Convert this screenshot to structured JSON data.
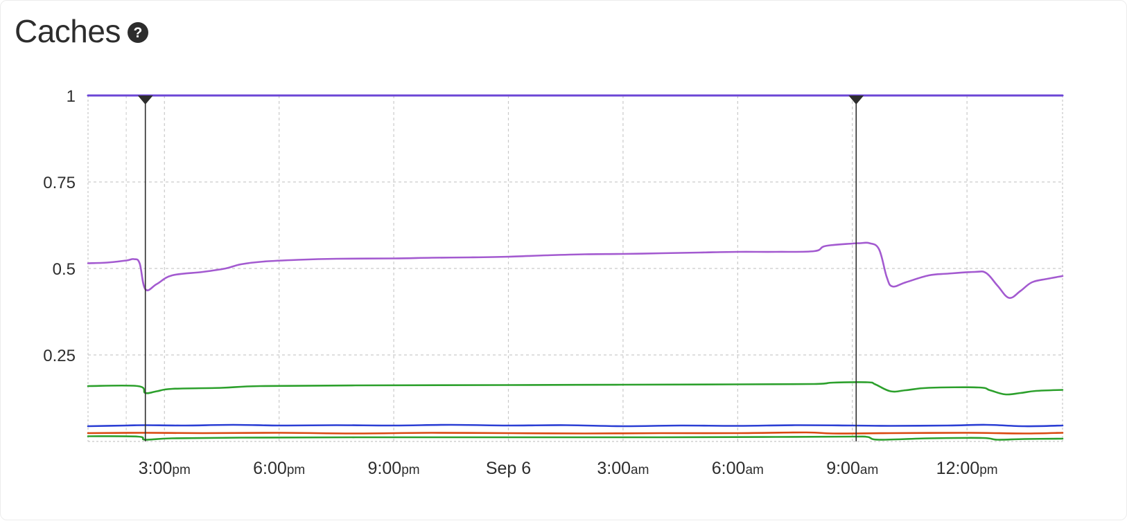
{
  "header": {
    "title": "Caches",
    "help_icon": "question-circle-icon",
    "help_glyph": "?"
  },
  "chart_data": {
    "type": "line",
    "title": "Caches",
    "xlabel": "",
    "ylabel": "",
    "ylim": [
      0,
      1
    ],
    "y_ticks": [
      {
        "value": 1,
        "label": "1"
      },
      {
        "value": 0.75,
        "label": "0.75"
      },
      {
        "value": 0.5,
        "label": "0.5"
      },
      {
        "value": 0.25,
        "label": "0.25"
      }
    ],
    "xlim": [
      "Sep 5 13:00",
      "Sep 6 14:30"
    ],
    "x_ticks": [
      {
        "hour": 15,
        "main": "3:00",
        "suffix": "pm"
      },
      {
        "hour": 18,
        "main": "6:00",
        "suffix": "pm"
      },
      {
        "hour": 21,
        "main": "9:00",
        "suffix": "pm"
      },
      {
        "hour": 24,
        "main": "Sep 6",
        "suffix": ""
      },
      {
        "hour": 27,
        "main": "3:00",
        "suffix": "am"
      },
      {
        "hour": 30,
        "main": "6:00",
        "suffix": "am"
      },
      {
        "hour": 33,
        "main": "9:00",
        "suffix": "am"
      },
      {
        "hour": 36,
        "main": "12:00",
        "suffix": "pm"
      }
    ],
    "grid": true,
    "legend": "none",
    "markers": [
      {
        "hour": 14.5,
        "label": "Sep 5 2:30pm"
      },
      {
        "hour": 33.1,
        "label": "Sep 6 9:06am"
      }
    ],
    "series": [
      {
        "color": "#6b45d6",
        "points": [
          [
            13,
            1.0
          ],
          [
            14.5,
            1.0
          ],
          [
            20,
            1.0
          ],
          [
            26,
            1.0
          ],
          [
            33.1,
            1.0
          ],
          [
            38.5,
            1.0
          ]
        ]
      },
      {
        "color": "#a35ad0",
        "points": [
          [
            13,
            0.515
          ],
          [
            13.5,
            0.517
          ],
          [
            14.0,
            0.523
          ],
          [
            14.2,
            0.527
          ],
          [
            14.35,
            0.515
          ],
          [
            14.5,
            0.44
          ],
          [
            14.8,
            0.455
          ],
          [
            15.2,
            0.48
          ],
          [
            16,
            0.49
          ],
          [
            16.6,
            0.5
          ],
          [
            17,
            0.512
          ],
          [
            17.6,
            0.52
          ],
          [
            18.5,
            0.525
          ],
          [
            19.5,
            0.528
          ],
          [
            21,
            0.529
          ],
          [
            22,
            0.531
          ],
          [
            23,
            0.532
          ],
          [
            24,
            0.534
          ],
          [
            25,
            0.538
          ],
          [
            26,
            0.541
          ],
          [
            27,
            0.542
          ],
          [
            28,
            0.544
          ],
          [
            29,
            0.546
          ],
          [
            30,
            0.548
          ],
          [
            31,
            0.548
          ],
          [
            32,
            0.55
          ],
          [
            32.3,
            0.565
          ],
          [
            33.0,
            0.572
          ],
          [
            33.2,
            0.573
          ],
          [
            33.45,
            0.573
          ],
          [
            33.7,
            0.555
          ],
          [
            33.9,
            0.475
          ],
          [
            34.05,
            0.448
          ],
          [
            34.4,
            0.46
          ],
          [
            35,
            0.48
          ],
          [
            35.5,
            0.485
          ],
          [
            36.2,
            0.49
          ],
          [
            36.5,
            0.487
          ],
          [
            36.8,
            0.45
          ],
          [
            37.1,
            0.415
          ],
          [
            37.4,
            0.435
          ],
          [
            37.7,
            0.46
          ],
          [
            38.1,
            0.47
          ],
          [
            38.5,
            0.478
          ]
        ]
      },
      {
        "color": "#2ca02c",
        "points": [
          [
            13,
            0.16
          ],
          [
            14.3,
            0.16
          ],
          [
            14.5,
            0.14
          ],
          [
            14.8,
            0.145
          ],
          [
            15.2,
            0.152
          ],
          [
            16.5,
            0.155
          ],
          [
            17.5,
            0.16
          ],
          [
            20,
            0.162
          ],
          [
            24,
            0.163
          ],
          [
            27,
            0.164
          ],
          [
            30,
            0.165
          ],
          [
            32,
            0.166
          ],
          [
            32.5,
            0.17
          ],
          [
            33.4,
            0.171
          ],
          [
            33.6,
            0.165
          ],
          [
            34.0,
            0.145
          ],
          [
            34.4,
            0.148
          ],
          [
            35,
            0.155
          ],
          [
            36.3,
            0.156
          ],
          [
            36.6,
            0.148
          ],
          [
            37.0,
            0.136
          ],
          [
            37.4,
            0.14
          ],
          [
            37.8,
            0.146
          ],
          [
            38.5,
            0.149
          ]
        ]
      },
      {
        "color": "#2b3fd4",
        "points": [
          [
            13,
            0.044
          ],
          [
            14,
            0.046
          ],
          [
            14.5,
            0.047
          ],
          [
            15.5,
            0.046
          ],
          [
            16.8,
            0.048
          ],
          [
            18,
            0.046
          ],
          [
            19.5,
            0.047
          ],
          [
            21,
            0.046
          ],
          [
            22.5,
            0.048
          ],
          [
            24,
            0.046
          ],
          [
            25.5,
            0.047
          ],
          [
            27,
            0.044
          ],
          [
            28.5,
            0.046
          ],
          [
            30,
            0.045
          ],
          [
            31.5,
            0.047
          ],
          [
            33.0,
            0.046
          ],
          [
            34.0,
            0.045
          ],
          [
            35.5,
            0.046
          ],
          [
            36.5,
            0.048
          ],
          [
            37.5,
            0.044
          ],
          [
            38.5,
            0.046
          ]
        ]
      },
      {
        "color": "#d9480f",
        "points": [
          [
            13,
            0.024
          ],
          [
            14.5,
            0.025
          ],
          [
            16,
            0.024
          ],
          [
            18,
            0.025
          ],
          [
            20,
            0.023
          ],
          [
            22,
            0.025
          ],
          [
            24,
            0.024
          ],
          [
            26,
            0.023
          ],
          [
            28,
            0.024
          ],
          [
            30,
            0.024
          ],
          [
            31.8,
            0.026
          ],
          [
            32.5,
            0.023
          ],
          [
            34,
            0.024
          ],
          [
            36,
            0.025
          ],
          [
            37.5,
            0.023
          ],
          [
            38.5,
            0.025
          ]
        ]
      },
      {
        "color": "#2ca02c",
        "points": [
          [
            13,
            0.015
          ],
          [
            14.3,
            0.014
          ],
          [
            14.5,
            0.005
          ],
          [
            15.2,
            0.009
          ],
          [
            17,
            0.011
          ],
          [
            20,
            0.012
          ],
          [
            24,
            0.012
          ],
          [
            28,
            0.012
          ],
          [
            31,
            0.013
          ],
          [
            33.0,
            0.014
          ],
          [
            33.4,
            0.013
          ],
          [
            33.7,
            0.005
          ],
          [
            35,
            0.009
          ],
          [
            36.4,
            0.01
          ],
          [
            36.8,
            0.005
          ],
          [
            37.5,
            0.007
          ],
          [
            38.5,
            0.008
          ]
        ]
      }
    ]
  }
}
